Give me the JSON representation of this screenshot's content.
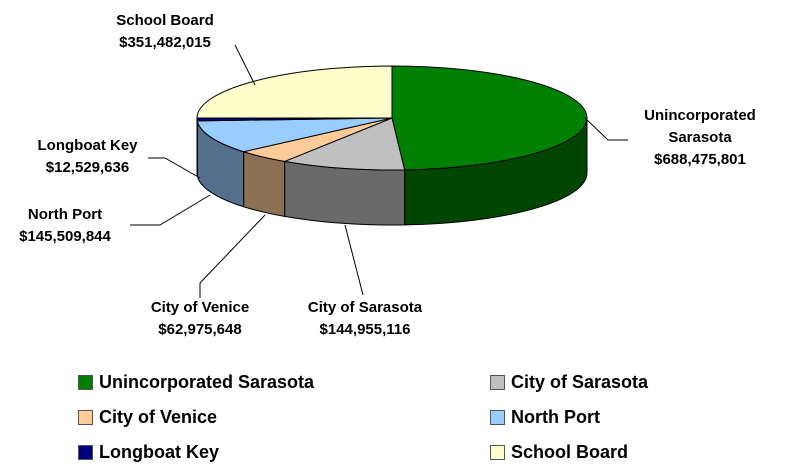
{
  "chart_data": {
    "type": "pie3d",
    "categories": [
      "Unincorporated Sarasota",
      "City of Sarasota",
      "City of Venice",
      "North Port",
      "Longboat Key",
      "School Board"
    ],
    "values": [
      688475801,
      144955116,
      62975648,
      145509844,
      12529636,
      351482015
    ],
    "value_labels": [
      "$688,475,801",
      "$144,955,116",
      "$62,975,648",
      "$145,509,844",
      "$12,529,636",
      "$351,482,015"
    ],
    "colors": [
      "#008000",
      "#c0c0c0",
      "#ffcc99",
      "#99ccff",
      "#000080",
      "#ffffcc"
    ],
    "legend": "bottom"
  }
}
